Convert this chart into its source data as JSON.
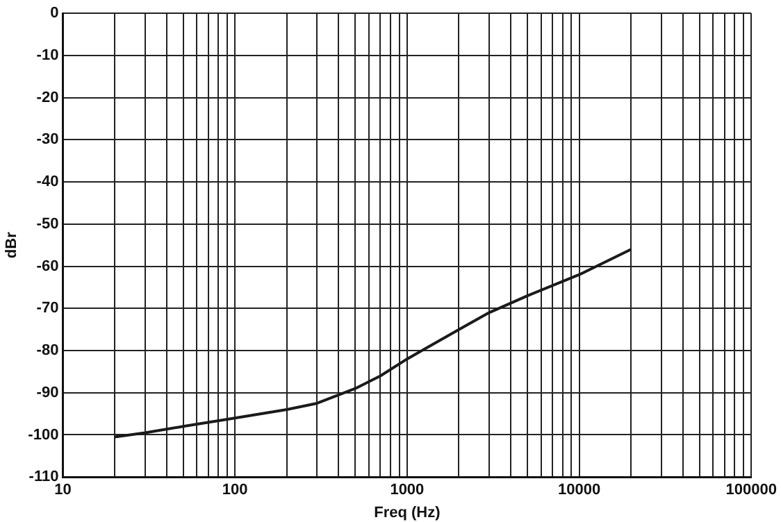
{
  "chart_data": {
    "type": "line",
    "xlabel": "Freq (Hz)",
    "ylabel": "dBr",
    "log": "x",
    "grid": true,
    "legend": false,
    "marker": "none",
    "line_style": "solid",
    "xlim": [
      10,
      100000
    ],
    "ylim": [
      -110,
      0
    ],
    "xticks": [
      10,
      {
        "value": 20,
        "label": null
      },
      {
        "value": 30,
        "label": null
      },
      {
        "value": 40,
        "label": null
      },
      {
        "value": 50,
        "label": null
      },
      {
        "value": 60,
        "label": null
      },
      {
        "value": 70,
        "label": null
      },
      {
        "value": 80,
        "label": null
      },
      {
        "value": 90,
        "label": null
      },
      100,
      {
        "value": 200,
        "label": null
      },
      {
        "value": 300,
        "label": null
      },
      {
        "value": 400,
        "label": null
      },
      {
        "value": 500,
        "label": null
      },
      {
        "value": 600,
        "label": null
      },
      {
        "value": 700,
        "label": null
      },
      {
        "value": 800,
        "label": null
      },
      {
        "value": 900,
        "label": null
      },
      1000,
      {
        "value": 2000,
        "label": null
      },
      {
        "value": 3000,
        "label": null
      },
      {
        "value": 4000,
        "label": null
      },
      {
        "value": 5000,
        "label": null
      },
      {
        "value": 6000,
        "label": null
      },
      {
        "value": 7000,
        "label": null
      },
      {
        "value": 8000,
        "label": null
      },
      {
        "value": 9000,
        "label": null
      },
      10000,
      {
        "value": 20000,
        "label": null
      },
      {
        "value": 30000,
        "label": null
      },
      {
        "value": 40000,
        "label": null
      },
      {
        "value": 50000,
        "label": null
      },
      {
        "value": 60000,
        "label": null
      },
      {
        "value": 70000,
        "label": null
      },
      {
        "value": 80000,
        "label": null
      },
      {
        "value": 90000,
        "label": null
      },
      100000
    ],
    "yticks": [
      -110,
      -100,
      -90,
      -80,
      -70,
      -60,
      -50,
      -40,
      -30,
      -20,
      -10,
      0
    ],
    "x": [
      20,
      30,
      50,
      100,
      200,
      300,
      500,
      700,
      1000,
      2000,
      3000,
      5000,
      10000,
      20000
    ],
    "series": [
      {
        "color": "#1a1a1a",
        "values": [
          -100.5,
          -99.5,
          -98,
          -96,
          -94,
          -92.5,
          -89,
          -86,
          -82,
          -75,
          -71,
          -67,
          -62,
          -56
        ]
      }
    ]
  }
}
